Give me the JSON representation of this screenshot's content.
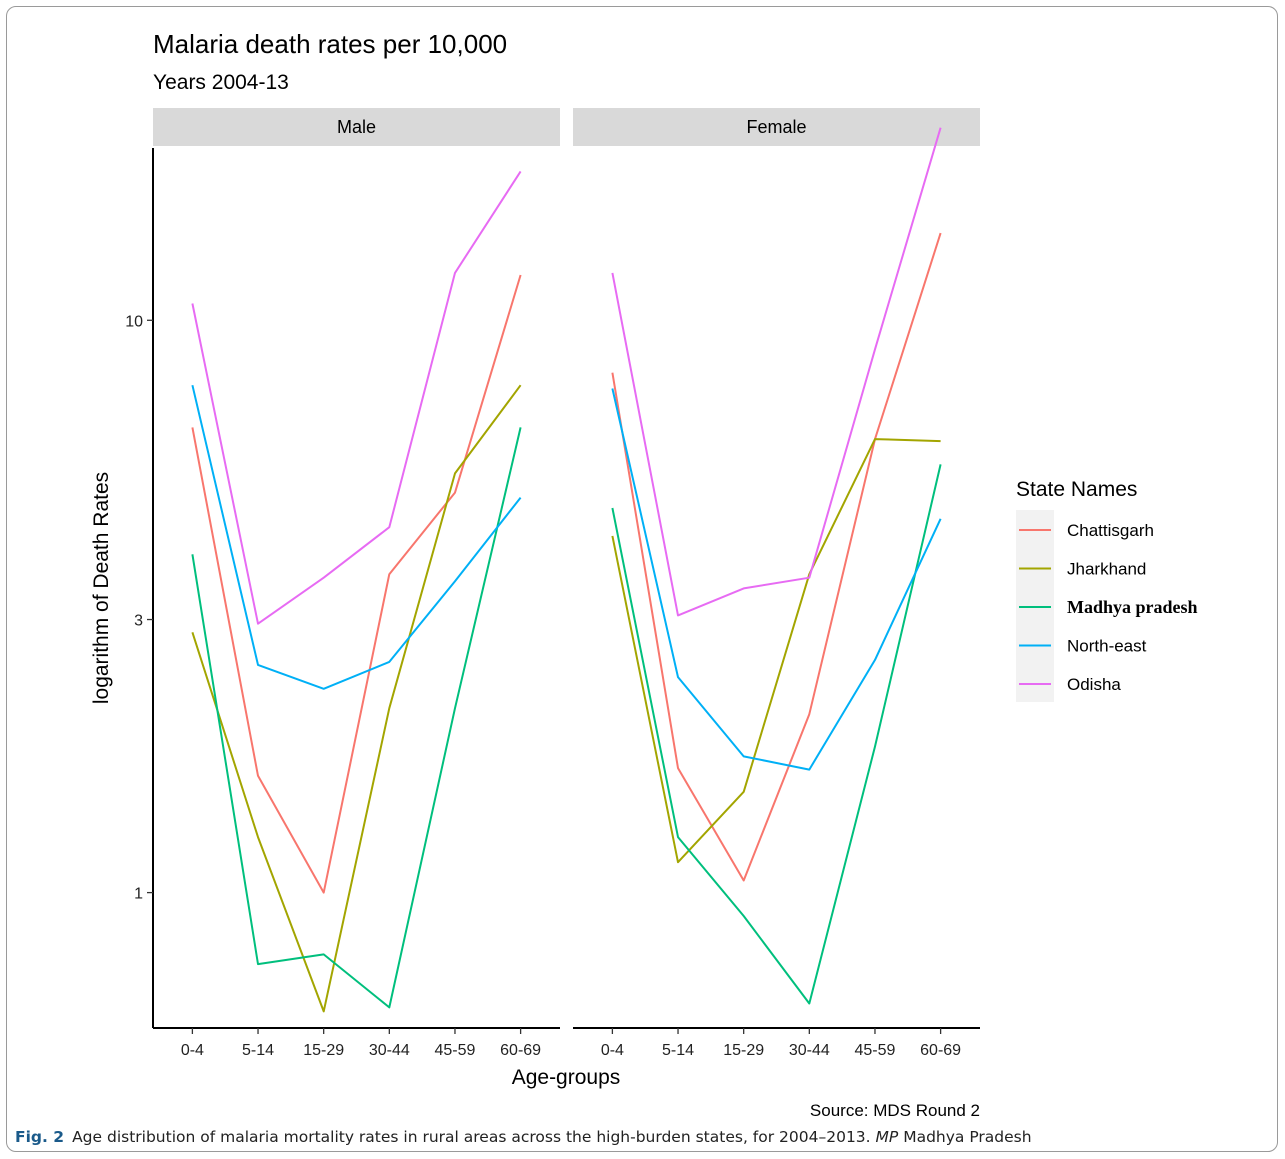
{
  "chart_data": {
    "type": "line",
    "title": "Malaria death rates per 10,000",
    "subtitle": "Years 2004-13",
    "xlabel": "Age-groups",
    "ylabel": "logarithm of Death Rates",
    "y_scale": "log",
    "ylim": [
      0.58,
      20
    ],
    "y_ticks": [
      1,
      3,
      10
    ],
    "y_tick_labels": [
      "1",
      "3",
      "10"
    ],
    "categories": [
      "0-4",
      "5-14",
      "15-29",
      "30-44",
      "45-59",
      "60-69"
    ],
    "facets": [
      "Male",
      "Female"
    ],
    "legend": {
      "title": "State Names",
      "placement": "right"
    },
    "caption": "Source: MDS Round 2",
    "grid": false,
    "series": [
      {
        "name": "Chattisgarh",
        "color": "#F8766D",
        "values": {
          "Male": [
            6.5,
            1.6,
            1.0,
            3.6,
            5.0,
            12.0
          ],
          "Female": [
            8.1,
            1.65,
            1.05,
            2.05,
            6.2,
            14.2
          ]
        }
      },
      {
        "name": "Jharkhand",
        "color": "#A3A500",
        "values": {
          "Male": [
            2.85,
            1.25,
            0.62,
            2.1,
            5.4,
            7.7
          ],
          "Female": [
            4.2,
            1.13,
            1.5,
            3.6,
            6.2,
            6.15
          ]
        }
      },
      {
        "name": "Madhya pradesh",
        "color": "#00BF7D",
        "values": {
          "Male": [
            3.9,
            0.75,
            0.78,
            0.63,
            2.1,
            6.5
          ],
          "Female": [
            4.7,
            1.25,
            0.91,
            0.64,
            1.8,
            5.6
          ]
        }
      },
      {
        "name": "North-east",
        "color": "#00B0F6",
        "values": {
          "Male": [
            7.7,
            2.5,
            2.27,
            2.53,
            3.5,
            4.9
          ],
          "Female": [
            7.6,
            2.38,
            1.73,
            1.64,
            2.55,
            4.5
          ]
        }
      },
      {
        "name": "Odisha",
        "color": "#E76BF3",
        "values": {
          "Male": [
            10.7,
            2.95,
            3.55,
            4.35,
            12.1,
            18.2
          ],
          "Female": [
            12.1,
            3.05,
            3.4,
            3.55,
            8.9,
            21.7
          ]
        }
      }
    ]
  },
  "figure_caption": {
    "label": "Fig. 2",
    "text": "Age distribution of malaria mortality rates in rural areas across the high-burden states, for 2004–2013.",
    "abbr": "MP",
    "abbr_text": "Madhya Pradesh"
  }
}
